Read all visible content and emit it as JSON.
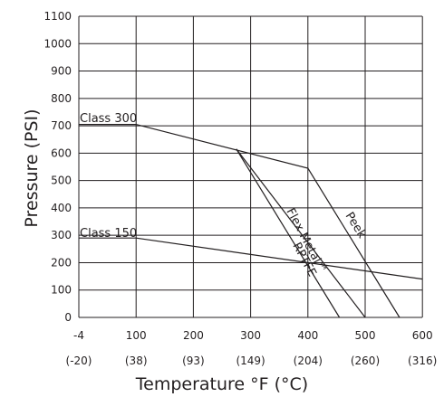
{
  "chart_data": {
    "type": "line",
    "title": "",
    "xlabel": "Temperature °F (°C)",
    "ylabel": "Pressure (PSI)",
    "xlim": [
      -4,
      600
    ],
    "ylim": [
      0,
      1100
    ],
    "grid": true,
    "x_ticks": [
      {
        "f": "-4",
        "c": "(-20)",
        "value": -4
      },
      {
        "f": "100",
        "c": "(38)",
        "value": 100
      },
      {
        "f": "200",
        "c": "(93)",
        "value": 200
      },
      {
        "f": "300",
        "c": "(149)",
        "value": 300
      },
      {
        "f": "400",
        "c": "(204)",
        "value": 400
      },
      {
        "f": "500",
        "c": "(260)",
        "value": 500
      },
      {
        "f": "600",
        "c": "(316)",
        "value": 600
      }
    ],
    "y_ticks": [
      "0",
      "100",
      "200",
      "300",
      "400",
      "500",
      "600",
      "700",
      "800",
      "900",
      "1000",
      "1100"
    ],
    "series": [
      {
        "name": "Class 300",
        "points": [
          [
            -4,
            705
          ],
          [
            100,
            705
          ],
          [
            400,
            545
          ],
          [
            560,
            0
          ]
        ]
      },
      {
        "name": "Class 150",
        "points": [
          [
            -4,
            290
          ],
          [
            100,
            290
          ],
          [
            600,
            140
          ]
        ]
      },
      {
        "name": "Flex Metal™",
        "points": [
          [
            275,
            615
          ],
          [
            500,
            0
          ]
        ]
      },
      {
        "name": "RPTFE",
        "points": [
          [
            275,
            615
          ],
          [
            455,
            0
          ]
        ]
      },
      {
        "name": "Peek",
        "points": []
      }
    ]
  }
}
